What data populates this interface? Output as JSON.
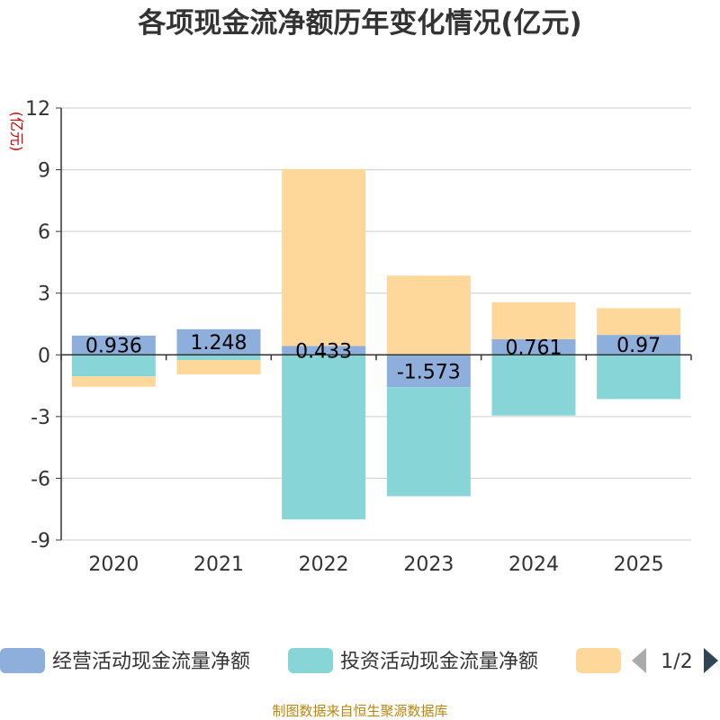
{
  "chart_data": {
    "type": "bar",
    "stacked": true,
    "title": "各项现金流净额历年变化情况(亿元)",
    "ylabel": "(亿元)",
    "categories": [
      "2020",
      "2021",
      "2022",
      "2023",
      "2024",
      "2025"
    ],
    "ylim": [
      -9,
      12
    ],
    "yticks": [
      -9,
      -6,
      -3,
      0,
      3,
      6,
      9,
      12
    ],
    "grid": true,
    "series": [
      {
        "name": "经营活动现金流量净额",
        "color": "#8eaedb",
        "values": [
          0.936,
          1.248,
          0.433,
          -1.573,
          0.761,
          0.97
        ],
        "labels": [
          "0.936",
          "1.248",
          "0.433",
          "-1.573",
          "0.761",
          "0.97"
        ]
      },
      {
        "name": "投资活动现金流量净额",
        "color": "#87d5d6",
        "values": [
          -1.05,
          -0.25,
          -8.0,
          -5.3,
          -2.95,
          -2.15
        ]
      },
      {
        "name": "",
        "color": "#fdd89a",
        "values": [
          -0.5,
          -0.7,
          8.6,
          3.85,
          1.8,
          1.3
        ]
      }
    ],
    "legend": {
      "position": "bottom",
      "page": "1/2"
    }
  },
  "source": "制图数据来自恒生聚源数据库"
}
